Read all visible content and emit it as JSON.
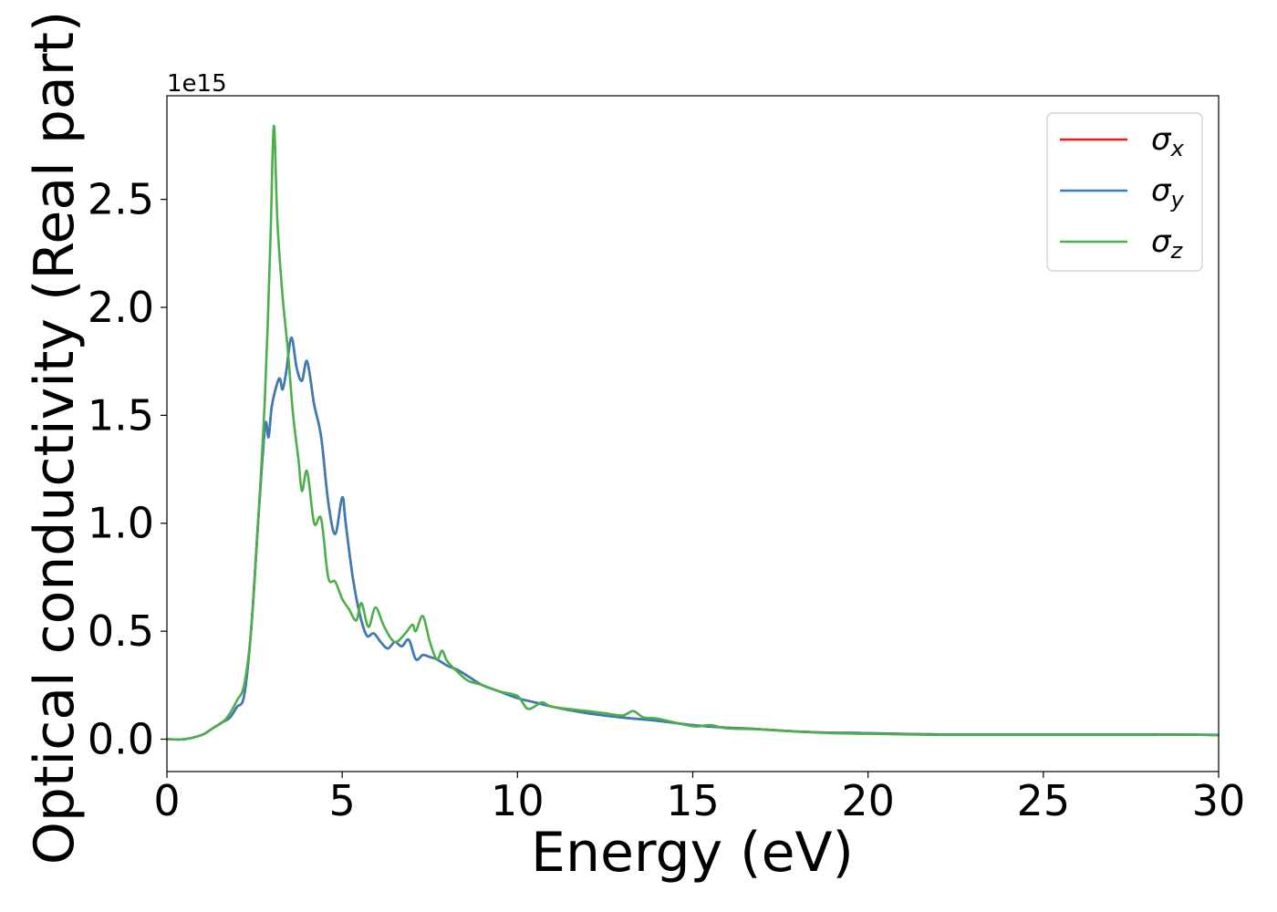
{
  "chart_data": {
    "type": "line",
    "title": "",
    "xlabel": "Energy (eV)",
    "ylabel": "Optical conductivity (Real part)",
    "y_offset_label": "1e15",
    "y_scale": 1000000000000000.0,
    "xlim": [
      0,
      30
    ],
    "ylim": [
      -0.15,
      2.98
    ],
    "grid": false,
    "legend_position": "top-right",
    "x_ticks": [
      0,
      5,
      10,
      15,
      20,
      25,
      30
    ],
    "x_tick_labels": [
      "0",
      "5",
      "10",
      "15",
      "20",
      "25",
      "30"
    ],
    "y_ticks": [
      0.0,
      0.5,
      1.0,
      1.5,
      2.0,
      2.5
    ],
    "y_tick_labels": [
      "0.0",
      "0.5",
      "1.0",
      "1.5",
      "2.0",
      "2.5"
    ],
    "series": [
      {
        "name": "σ_x",
        "legend_base": "σ",
        "legend_sub": "x",
        "color": "#e41a1c",
        "x": [
          0,
          0.5,
          1.0,
          1.3,
          1.6,
          1.8,
          2.0,
          2.2,
          2.4,
          2.6,
          2.8,
          2.9,
          3.0,
          3.2,
          3.3,
          3.4,
          3.55,
          3.7,
          3.85,
          4.0,
          4.2,
          4.4,
          4.6,
          4.8,
          5.0,
          5.1,
          5.3,
          5.5,
          5.7,
          5.9,
          6.1,
          6.3,
          6.5,
          6.7,
          6.9,
          7.1,
          7.3,
          7.5,
          7.7,
          8.0,
          8.3,
          8.6,
          9.0,
          9.5,
          10.0,
          10.5,
          11.0,
          12.0,
          13.0,
          14.0,
          15.0,
          15.8,
          16.5,
          17.0,
          18.0,
          19.0,
          20.0,
          22.0,
          24.0,
          26.0,
          28.0,
          30.0
        ],
        "values": [
          0.0,
          0.0,
          0.02,
          0.05,
          0.08,
          0.1,
          0.15,
          0.2,
          0.5,
          1.0,
          1.45,
          1.4,
          1.55,
          1.67,
          1.62,
          1.7,
          1.86,
          1.72,
          1.66,
          1.75,
          1.55,
          1.4,
          1.1,
          0.95,
          1.12,
          1.0,
          0.75,
          0.58,
          0.48,
          0.49,
          0.45,
          0.42,
          0.45,
          0.43,
          0.46,
          0.37,
          0.39,
          0.38,
          0.37,
          0.34,
          0.32,
          0.29,
          0.25,
          0.22,
          0.19,
          0.17,
          0.15,
          0.12,
          0.1,
          0.085,
          0.065,
          0.055,
          0.05,
          0.045,
          0.035,
          0.03,
          0.028,
          0.022,
          0.022,
          0.022,
          0.022,
          0.02
        ]
      },
      {
        "name": "σ_y",
        "legend_base": "σ",
        "legend_sub": "y",
        "color": "#377eb8",
        "x": [
          0,
          0.5,
          1.0,
          1.3,
          1.6,
          1.8,
          2.0,
          2.2,
          2.4,
          2.6,
          2.8,
          2.9,
          3.0,
          3.2,
          3.3,
          3.4,
          3.55,
          3.7,
          3.85,
          4.0,
          4.2,
          4.4,
          4.6,
          4.8,
          5.0,
          5.1,
          5.3,
          5.5,
          5.7,
          5.9,
          6.1,
          6.3,
          6.5,
          6.7,
          6.9,
          7.1,
          7.3,
          7.5,
          7.7,
          8.0,
          8.3,
          8.6,
          9.0,
          9.5,
          10.0,
          10.5,
          11.0,
          12.0,
          13.0,
          14.0,
          15.0,
          15.8,
          16.5,
          17.0,
          18.0,
          19.0,
          20.0,
          22.0,
          24.0,
          26.0,
          28.0,
          30.0
        ],
        "values": [
          0.0,
          0.0,
          0.02,
          0.05,
          0.08,
          0.1,
          0.15,
          0.2,
          0.5,
          1.0,
          1.45,
          1.4,
          1.55,
          1.67,
          1.62,
          1.7,
          1.86,
          1.72,
          1.66,
          1.75,
          1.55,
          1.4,
          1.1,
          0.95,
          1.12,
          1.0,
          0.75,
          0.58,
          0.48,
          0.49,
          0.45,
          0.42,
          0.45,
          0.43,
          0.46,
          0.37,
          0.39,
          0.38,
          0.37,
          0.34,
          0.32,
          0.29,
          0.25,
          0.22,
          0.19,
          0.17,
          0.15,
          0.12,
          0.1,
          0.085,
          0.065,
          0.055,
          0.05,
          0.045,
          0.035,
          0.03,
          0.028,
          0.022,
          0.022,
          0.022,
          0.022,
          0.02
        ]
      },
      {
        "name": "σ_z",
        "legend_base": "σ",
        "legend_sub": "z",
        "color": "#4daf4a",
        "x": [
          0,
          0.5,
          1.0,
          1.3,
          1.6,
          1.8,
          2.0,
          2.2,
          2.4,
          2.6,
          2.8,
          2.95,
          3.05,
          3.15,
          3.3,
          3.45,
          3.6,
          3.75,
          3.85,
          4.0,
          4.2,
          4.4,
          4.6,
          4.8,
          5.0,
          5.2,
          5.4,
          5.55,
          5.75,
          5.95,
          6.2,
          6.5,
          6.8,
          7.0,
          7.1,
          7.3,
          7.5,
          7.7,
          7.85,
          8.0,
          8.3,
          8.6,
          9.0,
          9.5,
          10.0,
          10.3,
          10.7,
          11.0,
          12.0,
          12.5,
          13.0,
          13.3,
          13.6,
          14.0,
          15.0,
          15.5,
          16.0,
          17.0,
          18.0,
          19.0,
          20.0,
          22.0,
          24.0,
          26.0,
          28.0,
          29.0,
          30.0
        ],
        "values": [
          0.0,
          0.0,
          0.02,
          0.05,
          0.08,
          0.12,
          0.18,
          0.25,
          0.5,
          1.0,
          1.6,
          2.3,
          2.84,
          2.4,
          2.05,
          1.8,
          1.5,
          1.3,
          1.15,
          1.24,
          1.0,
          1.02,
          0.75,
          0.73,
          0.65,
          0.6,
          0.55,
          0.63,
          0.52,
          0.61,
          0.52,
          0.45,
          0.49,
          0.53,
          0.5,
          0.57,
          0.45,
          0.37,
          0.41,
          0.36,
          0.31,
          0.27,
          0.25,
          0.22,
          0.2,
          0.14,
          0.17,
          0.15,
          0.13,
          0.12,
          0.11,
          0.13,
          0.1,
          0.095,
          0.06,
          0.065,
          0.05,
          0.045,
          0.035,
          0.028,
          0.025,
          0.02,
          0.02,
          0.02,
          0.02,
          0.022,
          0.018
        ]
      }
    ]
  }
}
